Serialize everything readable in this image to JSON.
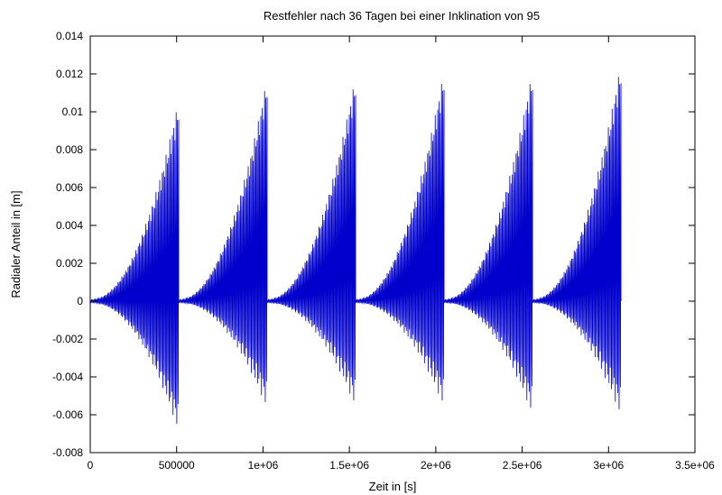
{
  "chart_data": {
    "type": "line",
    "title": "Restfehler nach 36 Tagen bei einer Inklination von 95",
    "xlabel": "Zeit in [s]",
    "ylabel": "Radialer Anteil in [m]",
    "xlim": [
      0,
      3500000
    ],
    "ylim": [
      -0.008,
      0.014
    ],
    "xticks": [
      0,
      500000,
      1000000,
      1500000,
      2000000,
      2500000,
      3000000,
      3500000
    ],
    "xtick_labels": [
      "0",
      "500000",
      "1e+06",
      "1.5e+06",
      "2e+06",
      "2.5e+06",
      "3e+06",
      "3.5e+06"
    ],
    "yticks": [
      -0.008,
      -0.006,
      -0.004,
      -0.002,
      0,
      0.002,
      0.004,
      0.006,
      0.008,
      0.01,
      0.012,
      0.014
    ],
    "ytick_labels": [
      "-0.008",
      "-0.006",
      "-0.004",
      "-0.002",
      "0",
      "0.002",
      "0.004",
      "0.006",
      "0.008",
      "0.01",
      "0.012",
      "0.014"
    ],
    "grid": false,
    "legend": "none",
    "series_color": "#0000cc",
    "series": [
      {
        "segments": [
          {
            "x_start": 0,
            "x_end": 512000,
            "upper_end": 0.0107,
            "lower_end": -0.0069
          },
          {
            "x_start": 512000,
            "x_end": 1024000,
            "upper_end": 0.0119,
            "lower_end": -0.0057
          },
          {
            "x_start": 1024000,
            "x_end": 1536000,
            "upper_end": 0.012,
            "lower_end": -0.0056
          },
          {
            "x_start": 1536000,
            "x_end": 2048000,
            "upper_end": 0.0123,
            "lower_end": -0.0056
          },
          {
            "x_start": 2048000,
            "x_end": 2560000,
            "upper_end": 0.0123,
            "lower_end": -0.006
          },
          {
            "x_start": 2560000,
            "x_end": 3072000,
            "upper_end": 0.0127,
            "lower_end": -0.0061
          }
        ]
      }
    ]
  }
}
